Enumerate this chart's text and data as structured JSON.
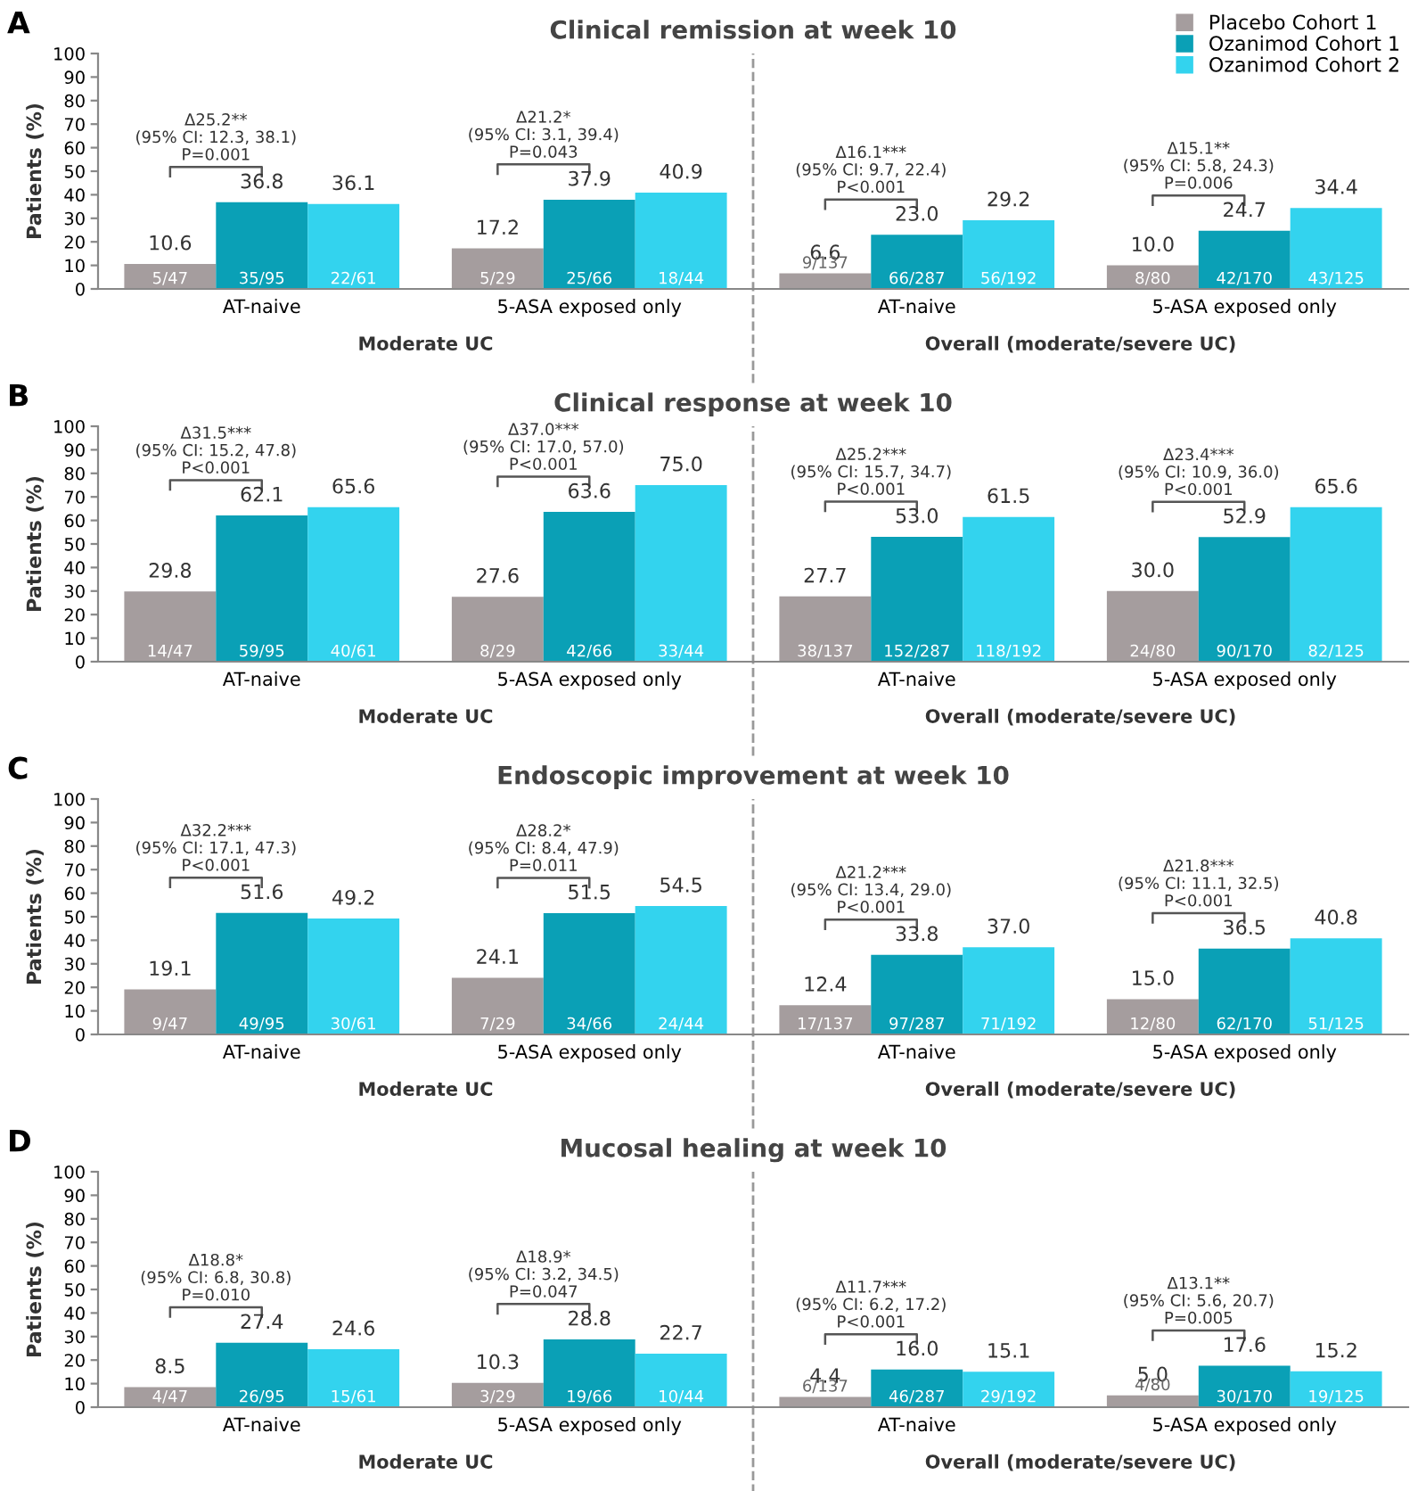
{
  "chart_data": [
    {
      "type": "bar",
      "title": "Clinical remission at week 10",
      "ylabel": "Patients (%)",
      "categories": [
        "AT-naive",
        "5-ASA exposed only",
        "AT-naive",
        "5-ASA exposed only"
      ],
      "series": [
        {
          "name": "Placebo Cohort 1",
          "color": "#a59d9e",
          "values": [
            10.6,
            17.2,
            6.6,
            10.0
          ],
          "value_labels": [
            "10.6",
            "17.2",
            "6.6",
            "10.0"
          ]
        },
        {
          "name": "Ozanimod Cohort 1",
          "color": "#0aa0b6",
          "values": [
            36.8,
            37.9,
            23.0,
            24.7
          ],
          "value_labels": [
            "36.8",
            "37.9",
            "23.0",
            "24.7"
          ]
        },
        {
          "name": "Ozanimod Cohort 2",
          "color": "#33d3ee",
          "values": [
            36.1,
            40.9,
            29.2,
            34.4
          ],
          "value_labels": [
            "36.1",
            "40.9",
            "29.2",
            "34.4"
          ]
        }
      ],
      "ylim": [
        0,
        100
      ],
      "yticks": [
        0,
        10,
        20,
        30,
        40,
        50,
        60,
        70,
        80,
        90,
        100
      ],
      "grid": false,
      "legend": "top right",
      "annotations": [
        "5/47",
        "35/95",
        "22/61",
        "5/29",
        "25/66",
        "18/44",
        "9/137",
        "66/287",
        "56/192",
        "8/80",
        "42/170",
        "43/125",
        "Δ25.2**\n(95% CI: 12.3, 38.1)\nP=0.001",
        "Δ21.2*\n(95% CI: 3.1, 39.4)\nP=0.043",
        "Δ16.1***\n(95% CI: 9.7, 22.4)\nP<0.001",
        "Δ15.1**\n(95% CI: 5.8, 24.3)\nP=0.006",
        "Moderate UC",
        "Overall (moderate/severe UC)",
        "A"
      ]
    },
    {
      "type": "bar",
      "title": "Clinical response at week 10",
      "ylabel": "Patients (%)",
      "categories": [
        "AT-naive",
        "5-ASA exposed only",
        "AT-naive",
        "5-ASA exposed only"
      ],
      "series": [
        {
          "color": "#a59d9e",
          "values": [
            29.8,
            27.6,
            27.7,
            30.0
          ],
          "value_labels": [
            "29.8",
            "27.6",
            "27.7",
            "30.0"
          ]
        },
        {
          "color": "#0aa0b6",
          "values": [
            62.1,
            63.6,
            53.0,
            52.9
          ],
          "value_labels": [
            "62.1",
            "63.6",
            "53.0",
            "52.9"
          ]
        },
        {
          "color": "#33d3ee",
          "values": [
            65.6,
            75.0,
            61.5,
            65.6
          ],
          "value_labels": [
            "65.6",
            "75.0",
            "61.5",
            "65.6"
          ]
        }
      ],
      "ylim": [
        0,
        100
      ],
      "yticks": [
        0,
        10,
        20,
        30,
        40,
        50,
        60,
        70,
        80,
        90,
        100
      ],
      "grid": false,
      "legend": false,
      "annotations": [
        "14/47",
        "59/95",
        "40/61",
        "8/29",
        "42/66",
        "33/44",
        "38/137",
        "152/287",
        "118/192",
        "24/80",
        "90/170",
        "82/125",
        "Δ31.5***\n(95% CI: 15.2, 47.8)\nP<0.001",
        "Δ37.0***\n(95% CI: 17.0, 57.0)\nP<0.001",
        "Δ25.2***\n(95% CI: 15.7, 34.7)\nP<0.001",
        "Δ23.4***\n(95% CI: 10.9, 36.0)\nP<0.001",
        "Moderate UC",
        "Overall (moderate/severe UC)",
        "B"
      ]
    },
    {
      "type": "bar",
      "title": "Endoscopic improvement at week 10",
      "ylabel": "Patients (%)",
      "categories": [
        "AT-naive",
        "5-ASA exposed only",
        "AT-naive",
        "5-ASA exposed only"
      ],
      "series": [
        {
          "color": "#a59d9e",
          "values": [
            19.1,
            24.1,
            12.4,
            15.0
          ],
          "value_labels": [
            "19.1",
            "24.1",
            "12.4",
            "15.0"
          ]
        },
        {
          "color": "#0aa0b6",
          "values": [
            51.6,
            51.5,
            33.8,
            36.5
          ],
          "value_labels": [
            "51.6",
            "51.5",
            "33.8",
            "36.5"
          ]
        },
        {
          "color": "#33d3ee",
          "values": [
            49.2,
            54.5,
            37.0,
            40.8
          ],
          "value_labels": [
            "49.2",
            "54.5",
            "37.0",
            "40.8"
          ]
        }
      ],
      "ylim": [
        0,
        100
      ],
      "yticks": [
        0,
        10,
        20,
        30,
        40,
        50,
        60,
        70,
        80,
        90,
        100
      ],
      "grid": false,
      "legend": false,
      "annotations": [
        "9/47",
        "49/95",
        "30/61",
        "7/29",
        "34/66",
        "24/44",
        "17/137",
        "97/287",
        "71/192",
        "12/80",
        "62/170",
        "51/125",
        "Δ32.2***\n(95% CI: 17.1, 47.3)\nP<0.001",
        "Δ28.2*\n(95% CI: 8.4, 47.9)\nP=0.011",
        "Δ21.2***\n(95% CI: 13.4, 29.0)\nP<0.001",
        "Δ21.8***\n(95% CI: 11.1, 32.5)\nP<0.001",
        "Moderate UC",
        "Overall (moderate/severe UC)",
        "C"
      ]
    },
    {
      "type": "bar",
      "title": "Mucosal healing at week 10",
      "ylabel": "Patients (%)",
      "categories": [
        "AT-naive",
        "5-ASA exposed only",
        "AT-naive",
        "5-ASA exposed only"
      ],
      "series": [
        {
          "color": "#a59d9e",
          "values": [
            8.5,
            10.3,
            4.4,
            5.0
          ],
          "value_labels": [
            "8.5",
            "10.3",
            "4.4",
            "5.0"
          ]
        },
        {
          "color": "#0aa0b6",
          "values": [
            27.4,
            28.8,
            16.0,
            17.6
          ],
          "value_labels": [
            "27.4",
            "28.8",
            "16.0",
            "17.6"
          ]
        },
        {
          "color": "#33d3ee",
          "values": [
            24.6,
            22.7,
            15.1,
            15.2
          ],
          "value_labels": [
            "24.6",
            "22.7",
            "15.1",
            "15.2"
          ]
        }
      ],
      "ylim": [
        0,
        100
      ],
      "yticks": [
        0,
        10,
        20,
        30,
        40,
        50,
        60,
        70,
        80,
        90,
        100
      ],
      "grid": false,
      "legend": false,
      "annotations": [
        "4/47",
        "26/95",
        "15/61",
        "3/29",
        "19/66",
        "10/44",
        "6/137",
        "46/287",
        "29/192",
        "4/80",
        "30/170",
        "19/125",
        "Δ18.8*\n(95% CI: 6.8, 30.8)\nP=0.010",
        "Δ18.9*\n(95% CI: 3.2, 34.5)\nP=0.047",
        "Δ11.7***\n(95% CI: 6.2, 17.2)\nP<0.001",
        "Δ13.1**\n(95% CI: 5.6, 20.7)\nP=0.005",
        "Moderate UC",
        "Overall (moderate/severe UC)",
        "D"
      ]
    }
  ]
}
